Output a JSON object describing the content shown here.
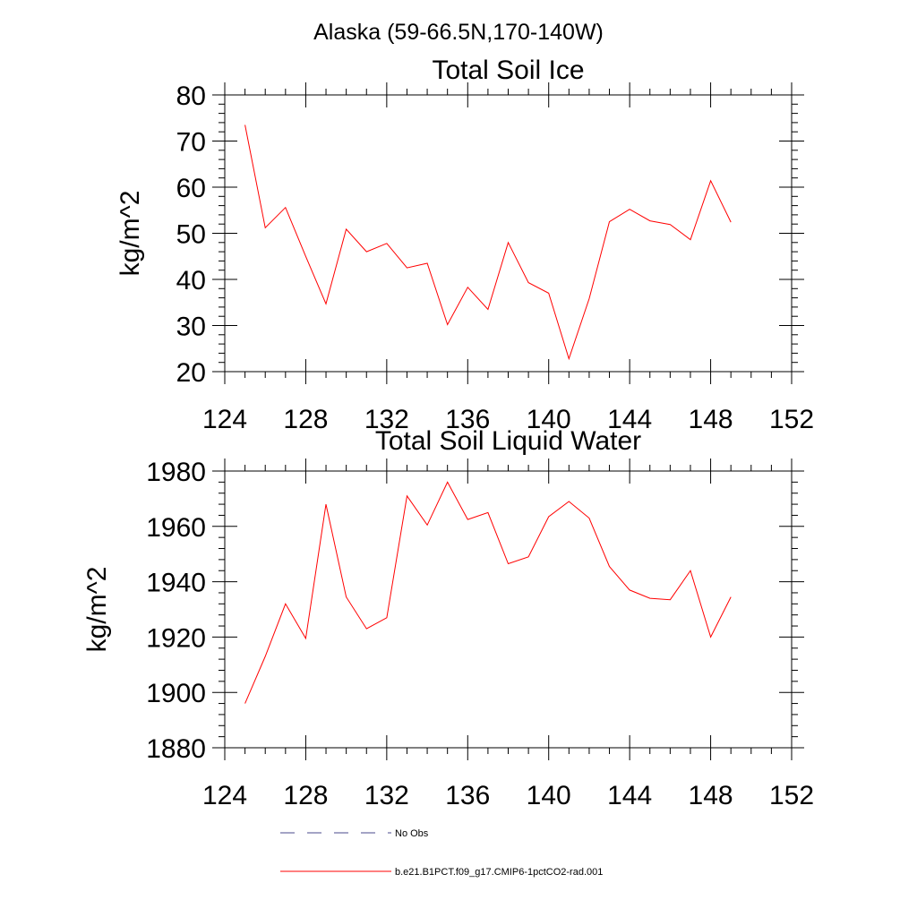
{
  "figure": {
    "title": "Alaska (59-66.5N,170-140W)"
  },
  "chart_data": [
    {
      "type": "line",
      "title": "Total Soil Ice",
      "xlabel": "",
      "ylabel": "kg/m^2",
      "xlim": [
        124,
        152
      ],
      "ylim": [
        20,
        80
      ],
      "xticks": [
        124,
        128,
        132,
        136,
        140,
        144,
        148,
        152
      ],
      "yticks": [
        20,
        30,
        40,
        50,
        60,
        70,
        80
      ],
      "grid": false,
      "series": [
        {
          "name": "b.e21.B1PCT.f09_g17.CMIP6-1pctCO2-rad.001",
          "color": "#ff0000",
          "x": [
            125,
            126,
            127,
            128,
            129,
            130,
            131,
            132,
            133,
            134,
            135,
            136,
            137,
            138,
            139,
            140,
            141,
            142,
            143,
            144,
            145,
            146,
            147,
            148,
            149
          ],
          "y": [
            73.5,
            51.2,
            55.6,
            45.0,
            34.7,
            50.9,
            46.0,
            47.8,
            42.5,
            43.5,
            30.2,
            38.3,
            33.5,
            48.0,
            39.3,
            37.0,
            22.8,
            35.8,
            52.5,
            55.2,
            52.7,
            51.9,
            48.6,
            61.4,
            52.4
          ]
        }
      ]
    },
    {
      "type": "line",
      "title": "Total Soil Liquid Water",
      "xlabel": "",
      "ylabel": "kg/m^2",
      "xlim": [
        124,
        152
      ],
      "ylim": [
        1880,
        1980
      ],
      "xticks": [
        124,
        128,
        132,
        136,
        140,
        144,
        148,
        152
      ],
      "yticks": [
        1880,
        1900,
        1920,
        1940,
        1960,
        1980
      ],
      "grid": false,
      "series": [
        {
          "name": "b.e21.B1PCT.f09_g17.CMIP6-1pctCO2-rad.001",
          "color": "#ff0000",
          "x": [
            125,
            126,
            127,
            128,
            129,
            130,
            131,
            132,
            133,
            134,
            135,
            136,
            137,
            138,
            139,
            140,
            141,
            142,
            143,
            144,
            145,
            146,
            147,
            148,
            149
          ],
          "y": [
            1896,
            1913,
            1932,
            1919.5,
            1968,
            1934.5,
            1923,
            1927,
            1971,
            1960.5,
            1976,
            1962.5,
            1965,
            1946.5,
            1949,
            1963.5,
            1969,
            1963,
            1945.5,
            1937,
            1934,
            1933.5,
            1944,
            1920,
            1934.5
          ]
        }
      ]
    }
  ],
  "legend": {
    "placement": "bottom-left",
    "items": [
      {
        "label": "No Obs",
        "color": "#4a4a8c",
        "style": "dashed"
      },
      {
        "label": "b.e21.B1PCT.f09_g17.CMIP6-1pctCO2-rad.001",
        "color": "#ff0000",
        "style": "solid"
      }
    ]
  }
}
